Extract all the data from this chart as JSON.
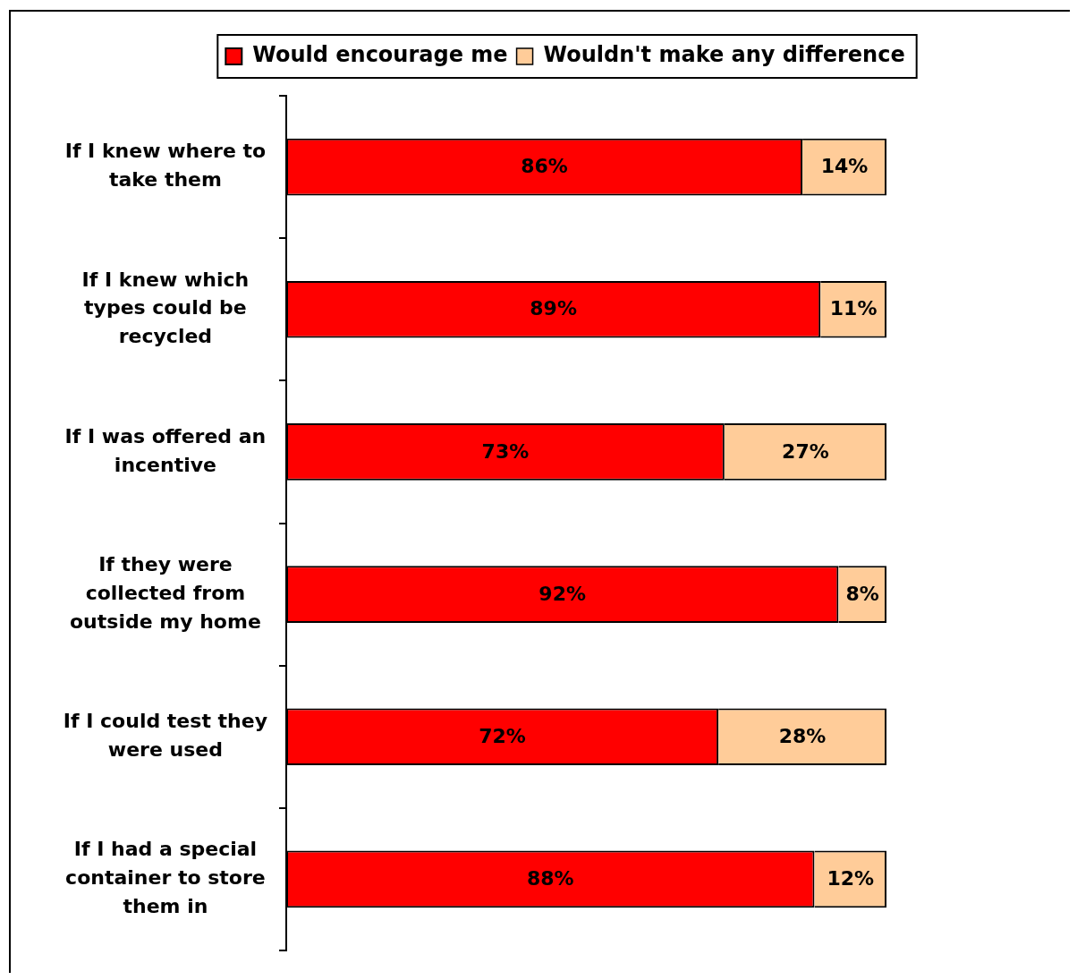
{
  "chart_data": {
    "type": "bar",
    "orientation": "horizontal",
    "stacked": true,
    "legend": "top",
    "categories": [
      "If I knew where to take them",
      "If I knew which types could be recycled",
      "If I was offered an incentive",
      "If they were collected from outside my home",
      "If I could test they were used",
      "If I had a special container to store them in"
    ],
    "series": [
      {
        "name": "Would encourage me",
        "color": "#ff0000",
        "values": [
          86,
          89,
          73,
          92,
          72,
          88
        ],
        "value_labels": [
          "86%",
          "89%",
          "73%",
          "92%",
          "72%",
          "88%"
        ]
      },
      {
        "name": "Wouldn't make any difference",
        "color": "#ffcc99",
        "values": [
          14,
          11,
          27,
          8,
          28,
          12
        ],
        "value_labels": [
          "14%",
          "11%",
          "27%",
          "8%",
          "28%",
          "12%"
        ]
      }
    ]
  }
}
